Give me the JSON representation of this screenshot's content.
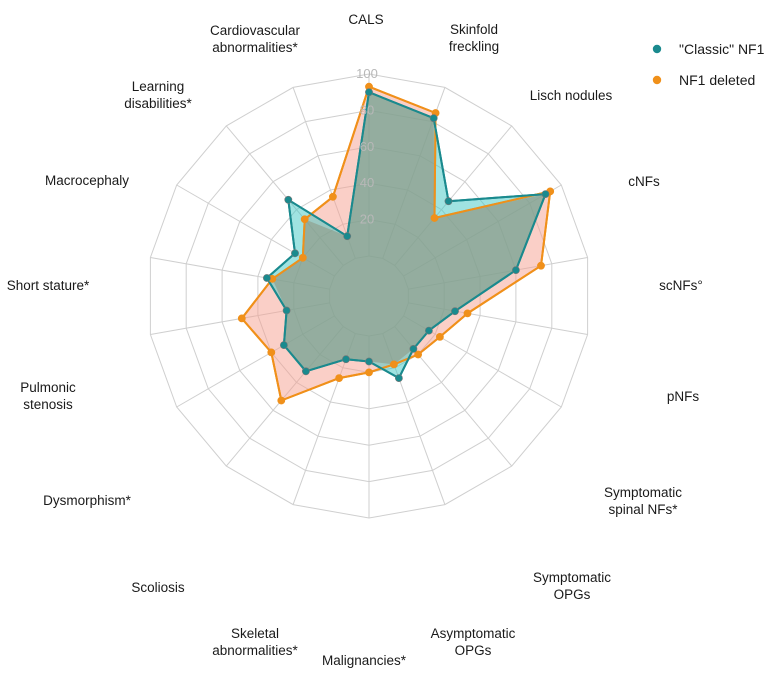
{
  "chart_data": {
    "type": "radar",
    "categories": [
      "CALS",
      "Skinfold freckling",
      "Lisch nodules",
      "cNFs",
      "scNFs°",
      "pNFs",
      "Symptomatic spinal NFs*",
      "Symptomatic OPGs",
      "Asymptomatic OPGs",
      "Malignancies*",
      "Skeletal abnormalities*",
      "Scoliosis",
      "Dysmorphism*",
      "Pulmonic stenosis",
      "Short stature*",
      "Macrocephaly",
      "Learning disabilities*",
      "Cardiovascular abnormalities*"
    ],
    "series": [
      {
        "name": "\"Classic\" NF1",
        "color": "#1a8a8e",
        "fill": "#40c8c4",
        "values": [
          90,
          82,
          46,
          90,
          60,
          26,
          16,
          16,
          26,
          14,
          15,
          32,
          32,
          24,
          35,
          25,
          47,
          13
        ]
      },
      {
        "name": "NF1 deleted",
        "color": "#f0901a",
        "fill": "#f5a090",
        "values": [
          93,
          85,
          34,
          93,
          74,
          33,
          23,
          20,
          18,
          20,
          26,
          53,
          40,
          49,
          32,
          20,
          33,
          36
        ]
      }
    ],
    "ticks": [
      0,
      20,
      40,
      60,
      80,
      100
    ],
    "tick_labels": [
      "",
      "20",
      "40",
      "60",
      "80",
      "100"
    ],
    "rlim": [
      0,
      100
    ],
    "grid": true,
    "legend_position": "top-right",
    "title": "",
    "xlabel": "",
    "ylabel": ""
  }
}
